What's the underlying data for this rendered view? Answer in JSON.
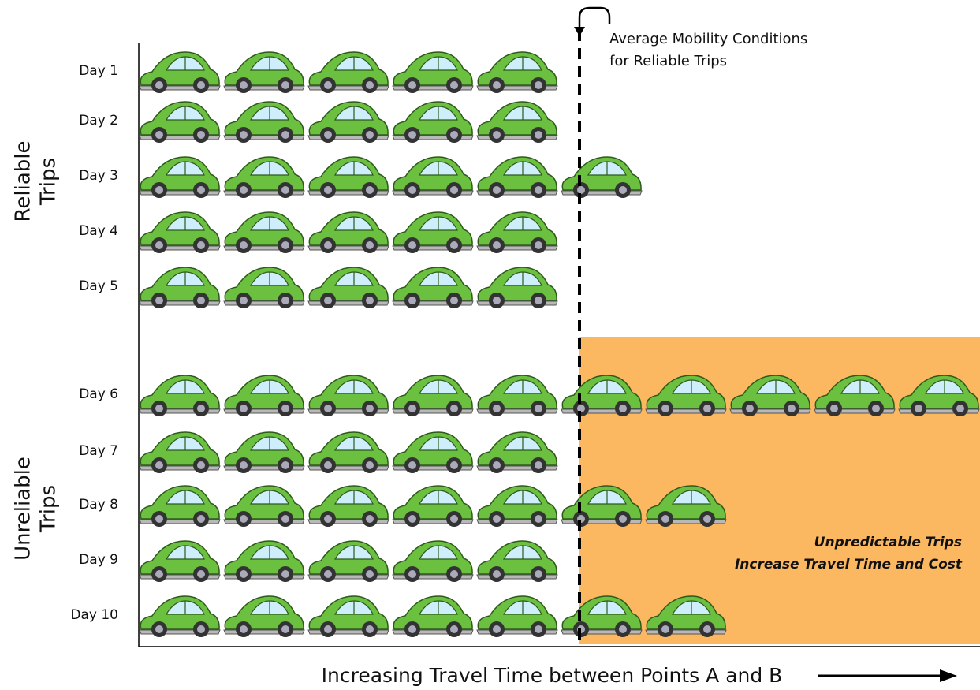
{
  "group_labels": [
    [
      "Reliable",
      "Trips"
    ],
    [
      "Unreliable",
      "Trips"
    ]
  ],
  "rows": [
    {
      "label": "Day 1",
      "cars": 5.2
    },
    {
      "label": "Day 2",
      "cars": 5.5
    },
    {
      "label": "Day 3",
      "cars": 6
    },
    {
      "label": "Day 4",
      "cars": 5
    },
    {
      "label": "Day 5",
      "cars": 5.2
    },
    {
      "label": "Day 6",
      "cars": 10
    },
    {
      "label": "Day 7",
      "cars": 5
    },
    {
      "label": "Day 8",
      "cars": 7.5
    },
    {
      "label": "Day 9",
      "cars": 5.2
    },
    {
      "label": "Day 10",
      "cars": 7
    }
  ],
  "average_note": [
    "Average Mobility Conditions",
    "for Reliable Trips"
  ],
  "zone_note": [
    "Unpredictable Trips",
    "Increase Travel Time and Cost"
  ],
  "x_axis_title": "Increasing Travel Time between Points A and B"
}
